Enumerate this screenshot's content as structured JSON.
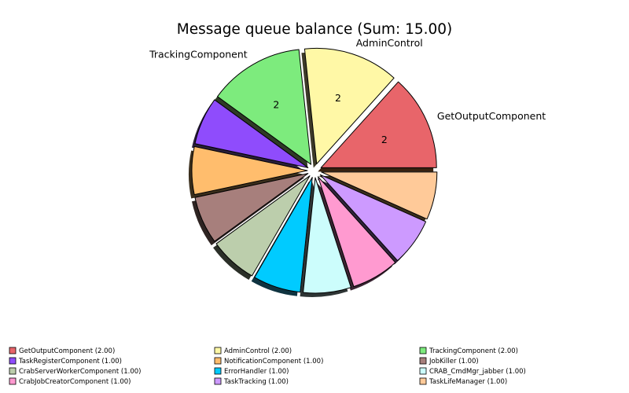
{
  "chart_data": {
    "type": "pie",
    "title": "Message queue balance (Sum: 15.00)",
    "slices": [
      {
        "label": "GetOutputComponent",
        "value": 2,
        "color": "#e8656a",
        "shadow": "#3a2210",
        "legend": "GetOutputComponent (2.00)",
        "outer_label": "GetOutputComponent",
        "inner_label": "2"
      },
      {
        "label": "AdminControl",
        "value": 2,
        "color": "#fff8a6",
        "shadow": "#3d3a28",
        "legend": "AdminControl (2.00)",
        "outer_label": "AdminControl",
        "inner_label": "2"
      },
      {
        "label": "TrackingComponent",
        "value": 2,
        "color": "#7deb7d",
        "shadow": "#2e3a26",
        "legend": "TrackingComponent (2.00)",
        "outer_label": "TrackingComponent",
        "inner_label": "2"
      },
      {
        "label": "TaskRegisterComponent",
        "value": 1,
        "color": "#8f4cfc",
        "shadow": "#2a1f3a",
        "legend": "TaskRegisterComponent (1.00)",
        "outer_label": "",
        "inner_label": ""
      },
      {
        "label": "NotificationComponent",
        "value": 1,
        "color": "#ffbd6d",
        "shadow": "#3a2e1c",
        "legend": "NotificationComponent (1.00)",
        "outer_label": "",
        "inner_label": ""
      },
      {
        "label": "JobKiller",
        "value": 1,
        "color": "#a77f7c",
        "shadow": "#2e2422",
        "legend": "JobKiller (1.00)",
        "outer_label": "",
        "inner_label": ""
      },
      {
        "label": "CrabServerWorkerComponent",
        "value": 1,
        "color": "#bcceac",
        "shadow": "#2b2f28",
        "legend": "CrabServerWorkerComponent (1.00)",
        "outer_label": "",
        "inner_label": ""
      },
      {
        "label": "ErrorHandler",
        "value": 1,
        "color": "#00cbff",
        "shadow": "#0f3340",
        "legend": "ErrorHandler (1.00)",
        "outer_label": "",
        "inner_label": ""
      },
      {
        "label": "CRAB_CmdMgr_jabber",
        "value": 1,
        "color": "#ccfdfc",
        "shadow": "#2e3535",
        "legend": "CRAB_CmdMgr_jabber (1.00)",
        "outer_label": "",
        "inner_label": ""
      },
      {
        "label": "CrabJobCreatorComponent",
        "value": 1,
        "color": "#ff9ad0",
        "shadow": "#3a2432",
        "legend": "CrabJobCreatorComponent (1.00)",
        "outer_label": "",
        "inner_label": ""
      },
      {
        "label": "TaskTracking",
        "value": 1,
        "color": "#cd9aff",
        "shadow": "#30243a",
        "legend": "TaskTracking (1.00)",
        "outer_label": "",
        "inner_label": ""
      },
      {
        "label": "TaskLifeManager",
        "value": 1,
        "color": "#ffca99",
        "shadow": "#3a2e1c",
        "legend": "TaskLifeManager (1.00)",
        "outer_label": "",
        "inner_label": ""
      }
    ],
    "start_angle": 0,
    "direction": "counterclockwise",
    "exploded": true,
    "shadow": true,
    "legend_position": "bottom",
    "legend_columns": 3
  }
}
